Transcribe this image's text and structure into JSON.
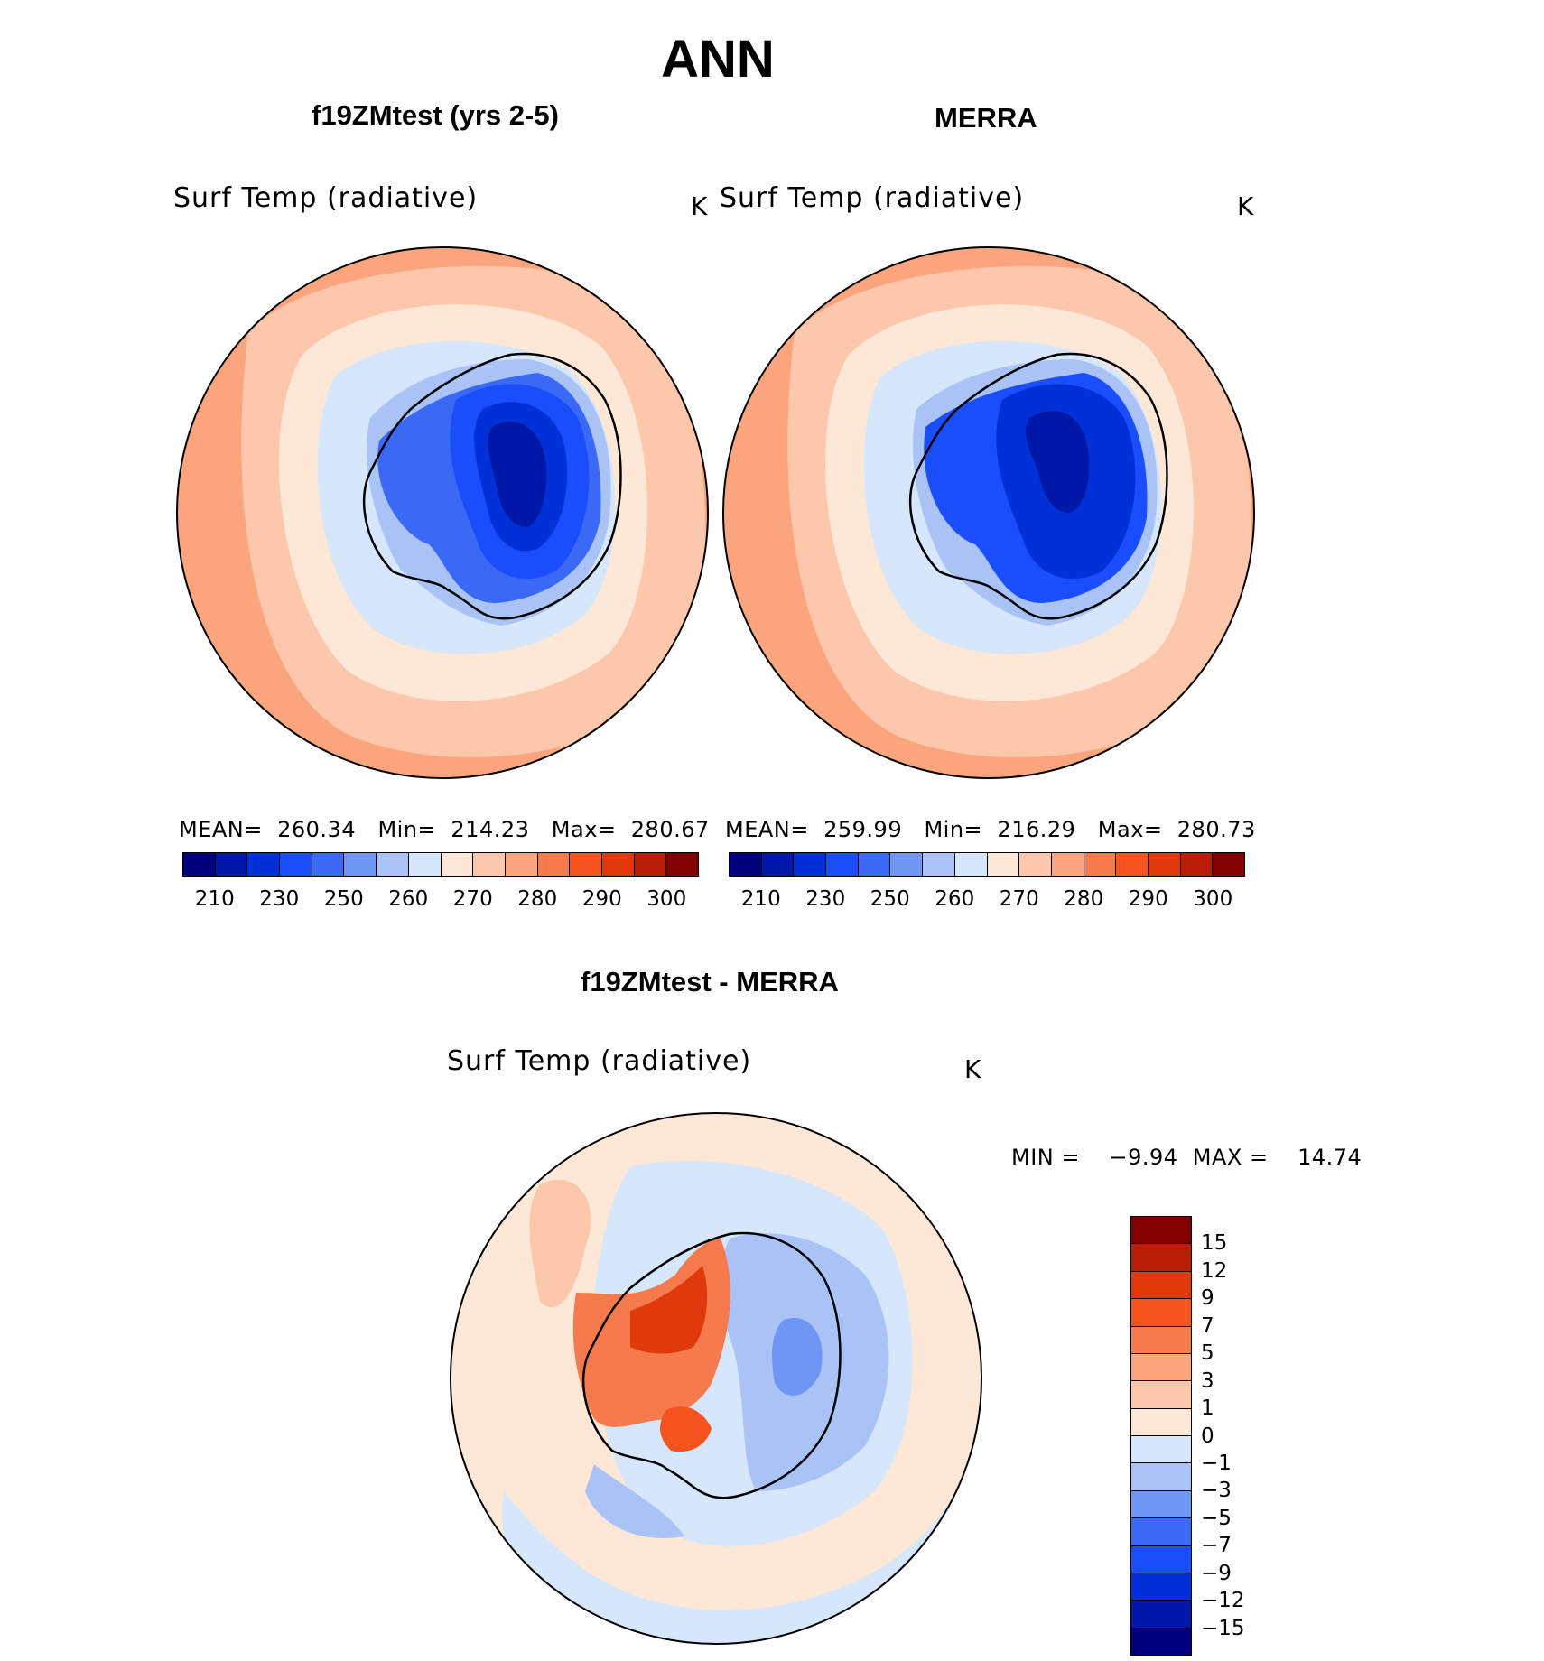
{
  "title": "ANN",
  "panels": [
    {
      "title": "f19ZMtest (yrs 2-5)",
      "variable": "Surf Temp (radiative)",
      "units": "K",
      "stats": "MEAN=  260.34   Min=  214.23   Max=  280.67"
    },
    {
      "title": "MERRA",
      "variable": "Surf Temp (radiative)",
      "units": "K",
      "stats": "MEAN=  259.99   Min=  216.29   Max=  280.73"
    }
  ],
  "diff": {
    "title": "f19ZMtest - MERRA",
    "variable": "Surf Temp (radiative)",
    "units": "K",
    "stats": "MIN =    −9.94  MAX =    14.74"
  },
  "colorbar": {
    "ticks": [
      "210",
      "230",
      "250",
      "260",
      "270",
      "280",
      "290",
      "300"
    ],
    "colors": [
      "#00007f",
      "#0018a8",
      "#0030d8",
      "#1a4dfb",
      "#3a6af5",
      "#6f95f5",
      "#a9c3f7",
      "#d6e6fb",
      "#fde8d8",
      "#fcc7aa",
      "#fba57e",
      "#f77a4c",
      "#f6531f",
      "#e03a0c",
      "#b91e06",
      "#800000"
    ]
  },
  "diff_colorbar": {
    "ticks": [
      "15",
      "12",
      "9",
      "7",
      "5",
      "3",
      "1",
      "0",
      "−1",
      "−3",
      "−5",
      "−7",
      "−9",
      "−12",
      "−15"
    ],
    "colors": [
      "#800000",
      "#b91e06",
      "#e03a0c",
      "#f6531f",
      "#f77a4c",
      "#fba57e",
      "#fcc7aa",
      "#fde8d8",
      "#d6e6fb",
      "#a9c3f7",
      "#6f95f5",
      "#3a6af5",
      "#1a4dfb",
      "#0030d8",
      "#0018a8",
      "#00007f"
    ]
  }
}
